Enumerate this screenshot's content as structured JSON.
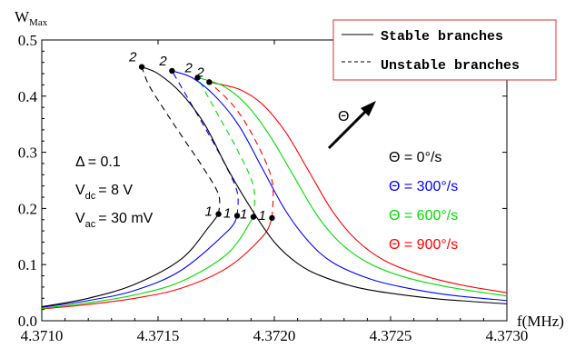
{
  "chart_data": {
    "type": "line",
    "xlabel": "f",
    "xunit": "(MHz)",
    "ylabel": "W",
    "ylabel_sub": "Max",
    "xlim": [
      4.371,
      4.373
    ],
    "ylim": [
      0.0,
      0.5
    ],
    "x_ticks": [
      "4.3710",
      "4.3715",
      "4.3720",
      "4.3725",
      "4.3730"
    ],
    "y_ticks": [
      "0.0",
      "0.1",
      "0.2",
      "0.3",
      "0.4",
      "0.5"
    ],
    "legend": {
      "stable": "Stable branches",
      "unstable": "Unstable branches",
      "position": "top-right"
    },
    "parameters": {
      "delta_lhs": "Δ",
      "delta_val": "= 0.1",
      "vdc_lhs": "V",
      "vdc_sub": "dc",
      "vdc_val": "= 8 V",
      "vac_lhs": "V",
      "vac_sub": "ac",
      "vac_val": "= 30 mV"
    },
    "arrow_label": "Θ",
    "point_labels": {
      "upper": "2",
      "lower": "1"
    },
    "series": [
      {
        "name": "Θ = 0°/s",
        "color": "#000000",
        "stable_left": [
          [
            4.371,
            0.025
          ],
          [
            4.3712,
            0.04
          ],
          [
            4.3714,
            0.065
          ],
          [
            4.3716,
            0.11
          ],
          [
            4.37172,
            0.168
          ],
          [
            4.37176,
            0.19
          ]
        ],
        "unstable": [
          [
            4.37176,
            0.19
          ],
          [
            4.37176,
            0.225
          ],
          [
            4.37169,
            0.275
          ],
          [
            4.3716,
            0.33
          ],
          [
            4.37152,
            0.38
          ],
          [
            4.37146,
            0.42
          ],
          [
            4.37143,
            0.452
          ]
        ],
        "stable_right": [
          [
            4.37143,
            0.452
          ],
          [
            4.3715,
            0.44
          ],
          [
            4.3716,
            0.405
          ],
          [
            4.3717,
            0.35
          ],
          [
            4.3718,
            0.27
          ],
          [
            4.3719,
            0.2
          ],
          [
            4.372,
            0.14
          ],
          [
            4.3721,
            0.102
          ],
          [
            4.3722,
            0.08
          ],
          [
            4.37235,
            0.06
          ],
          [
            4.3725,
            0.049
          ],
          [
            4.3727,
            0.039
          ],
          [
            4.373,
            0.03
          ]
        ],
        "point_upper": [
          4.37143,
          0.452
        ],
        "point_lower": [
          4.37176,
          0.19
        ]
      },
      {
        "name": "Θ = 300°/s",
        "color": "#0000ff",
        "stable_left": [
          [
            4.371,
            0.024
          ],
          [
            4.3712,
            0.036
          ],
          [
            4.3714,
            0.054
          ],
          [
            4.3716,
            0.09
          ],
          [
            4.3718,
            0.16
          ],
          [
            4.37184,
            0.187
          ]
        ],
        "unstable": [
          [
            4.37184,
            0.187
          ],
          [
            4.37184,
            0.23
          ],
          [
            4.37178,
            0.285
          ],
          [
            4.3717,
            0.345
          ],
          [
            4.37163,
            0.395
          ],
          [
            4.37156,
            0.445
          ]
        ],
        "stable_right": [
          [
            4.37156,
            0.445
          ],
          [
            4.37165,
            0.432
          ],
          [
            4.37175,
            0.398
          ],
          [
            4.37185,
            0.346
          ],
          [
            4.37195,
            0.27
          ],
          [
            4.37205,
            0.195
          ],
          [
            4.37215,
            0.14
          ],
          [
            4.37225,
            0.104
          ],
          [
            4.3724,
            0.076
          ],
          [
            4.37255,
            0.06
          ],
          [
            4.37275,
            0.046
          ],
          [
            4.373,
            0.036
          ]
        ],
        "point_upper": [
          4.37156,
          0.445
        ],
        "point_lower": [
          4.37184,
          0.187
        ]
      },
      {
        "name": "Θ = 600°/s",
        "color": "#00dd00",
        "stable_left": [
          [
            4.371,
            0.022
          ],
          [
            4.3712,
            0.032
          ],
          [
            4.3714,
            0.046
          ],
          [
            4.3716,
            0.07
          ],
          [
            4.3718,
            0.12
          ],
          [
            4.37191,
            0.185
          ]
        ],
        "unstable": [
          [
            4.37191,
            0.185
          ],
          [
            4.37191,
            0.24
          ],
          [
            4.37184,
            0.305
          ],
          [
            4.37176,
            0.365
          ],
          [
            4.37167,
            0.433
          ]
        ],
        "stable_right": [
          [
            4.37167,
            0.433
          ],
          [
            4.37178,
            0.418
          ],
          [
            4.37188,
            0.385
          ],
          [
            4.37198,
            0.33
          ],
          [
            4.37208,
            0.26
          ],
          [
            4.37218,
            0.19
          ],
          [
            4.37228,
            0.14
          ],
          [
            4.3724,
            0.104
          ],
          [
            4.37255,
            0.079
          ],
          [
            4.37275,
            0.06
          ],
          [
            4.373,
            0.044
          ]
        ],
        "point_upper": [
          4.37167,
          0.433
        ],
        "point_lower": [
          4.37191,
          0.185
        ]
      },
      {
        "name": "Θ = 900°/s",
        "color": "#ff0000",
        "stable_left": [
          [
            4.371,
            0.021
          ],
          [
            4.3712,
            0.029
          ],
          [
            4.3714,
            0.04
          ],
          [
            4.3716,
            0.058
          ],
          [
            4.3718,
            0.095
          ],
          [
            4.37195,
            0.15
          ],
          [
            4.37199,
            0.183
          ]
        ],
        "unstable": [
          [
            4.37199,
            0.183
          ],
          [
            4.37199,
            0.25
          ],
          [
            4.37192,
            0.32
          ],
          [
            4.37183,
            0.38
          ],
          [
            4.37172,
            0.425
          ]
        ],
        "stable_right": [
          [
            4.37172,
            0.425
          ],
          [
            4.37185,
            0.412
          ],
          [
            4.37195,
            0.385
          ],
          [
            4.37205,
            0.335
          ],
          [
            4.37215,
            0.265
          ],
          [
            4.37225,
            0.195
          ],
          [
            4.37235,
            0.145
          ],
          [
            4.37247,
            0.108
          ],
          [
            4.37262,
            0.083
          ],
          [
            4.3728,
            0.064
          ],
          [
            4.373,
            0.05
          ]
        ],
        "point_upper": [
          4.37172,
          0.425
        ],
        "point_lower": [
          4.37199,
          0.183
        ]
      }
    ]
  }
}
